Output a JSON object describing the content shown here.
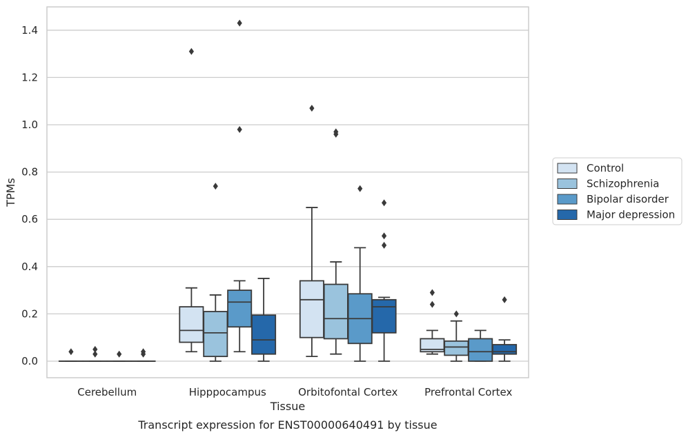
{
  "chart_data": {
    "type": "box",
    "xlabel": "Tissue",
    "ylabel": "TPMs",
    "caption": "Transcript expression for ENST00000640491 by tissue",
    "categories": [
      "Cerebellum",
      "Hipppocampus",
      "Orbitofontal Cortex",
      "Prefrontal Cortex"
    ],
    "ylim": [
      -0.07,
      1.5
    ],
    "yticks": [
      0.0,
      0.2,
      0.4,
      0.6,
      0.8,
      1.0,
      1.2,
      1.4
    ],
    "ytick_labels": [
      "0.0",
      "0.2",
      "0.4",
      "0.6",
      "0.8",
      "1.0",
      "1.2",
      "1.4"
    ],
    "grid": "horizontal",
    "legend_position": "right",
    "series": [
      {
        "name": "Control",
        "color": "#d3e3f2",
        "boxes": [
          {
            "min": 0.0,
            "q1": 0.0,
            "median": 0.0,
            "q3": 0.0,
            "max": 0.0,
            "outliers": [
              0.04
            ]
          },
          {
            "min": 0.04,
            "q1": 0.08,
            "median": 0.13,
            "q3": 0.23,
            "max": 0.31,
            "outliers": [
              1.31
            ]
          },
          {
            "min": 0.02,
            "q1": 0.1,
            "median": 0.26,
            "q3": 0.34,
            "max": 0.65,
            "outliers": [
              1.07
            ]
          },
          {
            "min": 0.03,
            "q1": 0.04,
            "median": 0.05,
            "q3": 0.095,
            "max": 0.13,
            "outliers": [
              0.24,
              0.29
            ]
          }
        ]
      },
      {
        "name": "Schizophrenia",
        "color": "#9ac3dd",
        "boxes": [
          {
            "min": 0.0,
            "q1": 0.0,
            "median": 0.0,
            "q3": 0.0,
            "max": 0.0,
            "outliers": [
              0.03,
              0.05
            ]
          },
          {
            "min": 0.0,
            "q1": 0.02,
            "median": 0.12,
            "q3": 0.21,
            "max": 0.28,
            "outliers": [
              0.74
            ]
          },
          {
            "min": 0.03,
            "q1": 0.095,
            "median": 0.18,
            "q3": 0.325,
            "max": 0.42,
            "outliers": [
              0.96,
              0.97
            ]
          },
          {
            "min": 0.0,
            "q1": 0.025,
            "median": 0.06,
            "q3": 0.085,
            "max": 0.17,
            "outliers": [
              0.2
            ]
          }
        ]
      },
      {
        "name": "Bipolar disorder",
        "color": "#5a9ac9",
        "boxes": [
          {
            "min": 0.0,
            "q1": 0.0,
            "median": 0.0,
            "q3": 0.0,
            "max": 0.0,
            "outliers": [
              0.03
            ]
          },
          {
            "min": 0.04,
            "q1": 0.145,
            "median": 0.25,
            "q3": 0.3,
            "max": 0.34,
            "outliers": [
              0.98,
              1.43
            ]
          },
          {
            "min": 0.0,
            "q1": 0.075,
            "median": 0.18,
            "q3": 0.285,
            "max": 0.48,
            "outliers": [
              0.73
            ]
          },
          {
            "min": 0.0,
            "q1": 0.0,
            "median": 0.04,
            "q3": 0.095,
            "max": 0.13,
            "outliers": []
          }
        ]
      },
      {
        "name": "Major depression",
        "color": "#2568aa",
        "boxes": [
          {
            "min": 0.0,
            "q1": 0.0,
            "median": 0.0,
            "q3": 0.0,
            "max": 0.0,
            "outliers": [
              0.03,
              0.04
            ]
          },
          {
            "min": 0.0,
            "q1": 0.03,
            "median": 0.09,
            "q3": 0.195,
            "max": 0.35,
            "outliers": []
          },
          {
            "min": 0.0,
            "q1": 0.12,
            "median": 0.23,
            "q3": 0.26,
            "max": 0.27,
            "outliers": [
              0.49,
              0.53,
              0.67
            ]
          },
          {
            "min": 0.0,
            "q1": 0.03,
            "median": 0.04,
            "q3": 0.07,
            "max": 0.09,
            "outliers": [
              0.26
            ]
          }
        ]
      }
    ]
  }
}
